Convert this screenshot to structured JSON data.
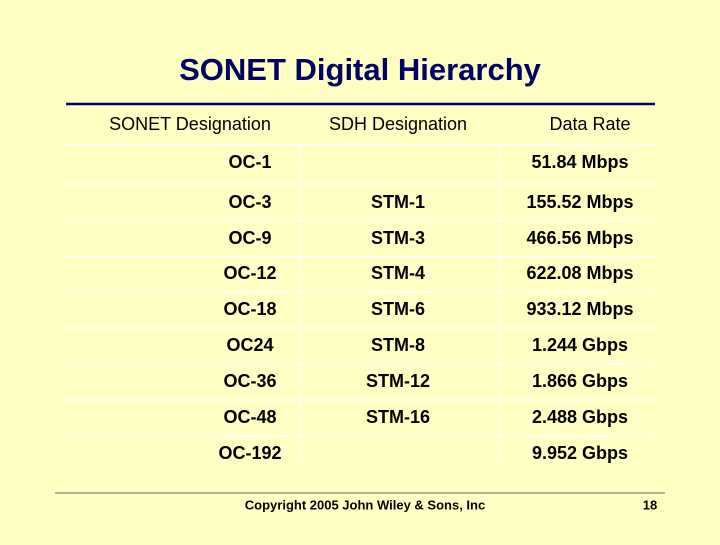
{
  "title": "SONET Digital Hierarchy",
  "table": {
    "header": [
      "SONET Designation",
      "SDH Designation",
      "Data Rate"
    ],
    "rows": [
      [
        "OC-1",
        null,
        "51.84 Mbps"
      ],
      [
        "OC-3",
        "STM-1",
        "155.52 Mbps"
      ],
      [
        "OC-9",
        "STM-3",
        "466.56 Mbps"
      ],
      [
        "OC-12",
        "STM-4",
        "622.08 Mbps"
      ],
      [
        "OC-18",
        "STM-6",
        "933.12 Mbps"
      ],
      [
        "OC24",
        "STM-8",
        "1.244 Gbps"
      ],
      [
        "OC-36",
        "STM-12",
        "1.866 Gbps"
      ],
      [
        "OC-48",
        "STM-16",
        "2.488 Gbps"
      ],
      [
        "OC-192",
        null,
        "9.952 Gbps"
      ]
    ]
  },
  "footer": {
    "copyright": "Copyright 2005 John Wiley & Sons, Inc",
    "page": "18"
  }
}
